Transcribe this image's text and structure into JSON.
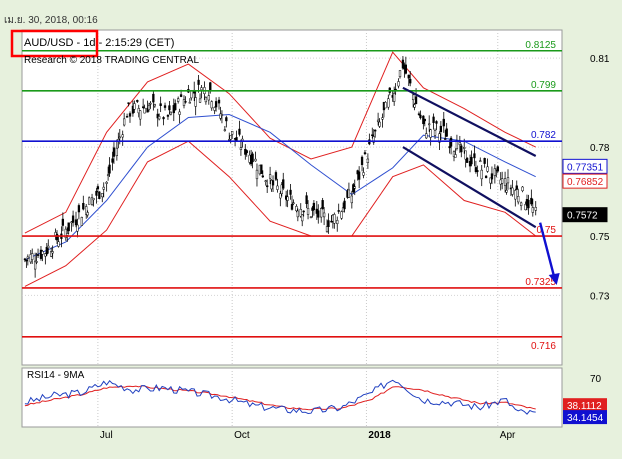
{
  "header": {
    "timestamp": "เม.ย. 30, 2018, 00:16",
    "symbol_line": "AUD/USD - 1d - 2:15:29 (CET)",
    "copyright_line": "Research © 2018 TRADING CENTRAL"
  },
  "colors": {
    "background": "#e7f1dd",
    "plot_bg": "#ffffff",
    "support_resistance_red": "#e01010",
    "level_green": "#1a9a1a",
    "pivot_blue": "#1010d0",
    "channel_navy": "#101060",
    "bollinger": "#e02020",
    "ma_blue": "#3050d0",
    "candles": "#000000",
    "highlight_box": "#ff0000"
  },
  "chart_data": [
    {
      "type": "line",
      "title": "",
      "subtitle": "",
      "xlabel": "",
      "ylabel": "",
      "ylim": [
        0.7065,
        0.8195
      ],
      "y_ticks": [
        "0.81",
        "0.78",
        "0.75",
        "0.73"
      ],
      "y_tick_values": [
        0.81,
        0.78,
        0.75,
        0.73
      ],
      "x_ticks": [
        "Jul",
        "Oct",
        "2018",
        "Apr"
      ],
      "x_tick_dates": [
        "2017-07-01",
        "2017-10-01",
        "2018-01-01",
        "2018-04-01"
      ],
      "x_range": [
        "2017-05-10",
        "2018-05-15"
      ],
      "grid": true,
      "series": [
        {
          "style": "ohlc-candles",
          "x": [
            "2017-05-12",
            "2017-05-26",
            "2017-06-09",
            "2017-06-23",
            "2017-07-07",
            "2017-07-21",
            "2017-08-04",
            "2017-08-18",
            "2017-09-01",
            "2017-09-15",
            "2017-09-29",
            "2017-10-13",
            "2017-10-27",
            "2017-11-10",
            "2017-11-24",
            "2017-12-08",
            "2017-12-22",
            "2018-01-05",
            "2018-01-19",
            "2018-01-26",
            "2018-02-09",
            "2018-02-23",
            "2018-03-09",
            "2018-03-23",
            "2018-04-06",
            "2018-04-20",
            "2018-04-27"
          ],
          "values": [
            0.742,
            0.745,
            0.752,
            0.76,
            0.768,
            0.792,
            0.794,
            0.79,
            0.798,
            0.8,
            0.785,
            0.778,
            0.768,
            0.762,
            0.758,
            0.755,
            0.764,
            0.782,
            0.798,
            0.808,
            0.787,
            0.785,
            0.777,
            0.772,
            0.768,
            0.763,
            0.757
          ]
        },
        {
          "style": "bollinger-upper",
          "x": [
            "2017-05-12",
            "2017-06-09",
            "2017-07-07",
            "2017-08-04",
            "2017-09-01",
            "2017-09-29",
            "2017-10-27",
            "2017-11-24",
            "2017-12-22",
            "2018-01-19",
            "2018-02-09",
            "2018-03-09",
            "2018-04-06",
            "2018-04-27"
          ],
          "values": [
            0.751,
            0.758,
            0.785,
            0.802,
            0.808,
            0.798,
            0.783,
            0.776,
            0.78,
            0.812,
            0.8,
            0.793,
            0.785,
            0.78
          ]
        },
        {
          "style": "bollinger-lower",
          "x": [
            "2017-05-12",
            "2017-06-09",
            "2017-07-07",
            "2017-08-04",
            "2017-09-01",
            "2017-09-29",
            "2017-10-27",
            "2017-11-24",
            "2017-12-22",
            "2018-01-19",
            "2018-02-09",
            "2018-03-09",
            "2018-04-06",
            "2018-04-27"
          ],
          "values": [
            0.733,
            0.74,
            0.752,
            0.775,
            0.782,
            0.77,
            0.755,
            0.75,
            0.75,
            0.77,
            0.774,
            0.762,
            0.758,
            0.75
          ]
        },
        {
          "style": "moving-average",
          "x": [
            "2017-05-12",
            "2017-06-09",
            "2017-07-07",
            "2017-08-04",
            "2017-09-01",
            "2017-09-29",
            "2017-10-27",
            "2017-11-24",
            "2017-12-22",
            "2018-01-19",
            "2018-02-09",
            "2018-03-09",
            "2018-04-06",
            "2018-04-27"
          ],
          "values": [
            0.742,
            0.748,
            0.762,
            0.78,
            0.79,
            0.791,
            0.785,
            0.774,
            0.764,
            0.773,
            0.784,
            0.782,
            0.775,
            0.77
          ]
        },
        {
          "style": "channel",
          "x": [
            "2018-01-26",
            "2018-04-27"
          ],
          "values_upper": [
            0.8,
            0.777
          ],
          "values_lower": [
            0.78,
            0.753
          ]
        },
        {
          "style": "projection-arrow",
          "x": [
            "2018-04-30",
            "2018-05-10"
          ],
          "values": [
            0.7545,
            0.7335
          ]
        }
      ],
      "levels": [
        {
          "label": "0.8125",
          "value": 0.8125,
          "color": "level_green"
        },
        {
          "label": "0.799",
          "value": 0.799,
          "color": "level_green"
        },
        {
          "label": "0.782",
          "value": 0.782,
          "color": "pivot_blue"
        },
        {
          "label": "0.75",
          "value": 0.75,
          "color": "support_resistance_red"
        },
        {
          "label": "0.7325",
          "value": 0.7325,
          "color": "support_resistance_red"
        },
        {
          "label": "0.716",
          "value": 0.716,
          "color": "support_resistance_red"
        }
      ],
      "price_markers": [
        {
          "label": "0.77351",
          "value": 0.77351,
          "style": "blue"
        },
        {
          "label": "0.76852",
          "value": 0.76852,
          "style": "red"
        },
        {
          "label": "0.7572",
          "value": 0.7572,
          "style": "black"
        }
      ]
    },
    {
      "type": "line",
      "title": "RSI14 - 9MA",
      "ylim": [
        20,
        80
      ],
      "y_ticks": [
        "70"
      ],
      "y_tick_values": [
        70
      ],
      "series": [
        {
          "name": "RSI14",
          "x": [
            "2017-05-12",
            "2017-06-01",
            "2017-06-20",
            "2017-07-07",
            "2017-07-25",
            "2017-08-15",
            "2017-09-05",
            "2017-09-25",
            "2017-10-15",
            "2017-11-05",
            "2017-11-25",
            "2017-12-15",
            "2018-01-05",
            "2018-01-20",
            "2018-02-08",
            "2018-03-01",
            "2018-03-20",
            "2018-04-06",
            "2018-04-15",
            "2018-04-27"
          ],
          "values": [
            45,
            52,
            55,
            66,
            58,
            60,
            55,
            50,
            42,
            38,
            36,
            40,
            55,
            70,
            48,
            45,
            40,
            48,
            35,
            34
          ]
        },
        {
          "name": "9MA",
          "x": [
            "2017-05-12",
            "2017-06-01",
            "2017-06-20",
            "2017-07-07",
            "2017-07-25",
            "2017-08-15",
            "2017-09-05",
            "2017-09-25",
            "2017-10-15",
            "2017-11-05",
            "2017-11-25",
            "2017-12-15",
            "2018-01-05",
            "2018-01-20",
            "2018-02-08",
            "2018-03-01",
            "2018-03-20",
            "2018-04-06",
            "2018-04-15",
            "2018-04-27"
          ],
          "values": [
            42,
            48,
            53,
            60,
            62,
            59,
            56,
            52,
            46,
            40,
            38,
            39,
            48,
            62,
            58,
            50,
            44,
            45,
            42,
            38
          ]
        }
      ],
      "price_markers": [
        {
          "label": "38.1112",
          "value": 38.1112,
          "style": "red"
        },
        {
          "label": "34.1454",
          "value": 34.1454,
          "style": "blue"
        }
      ]
    }
  ]
}
